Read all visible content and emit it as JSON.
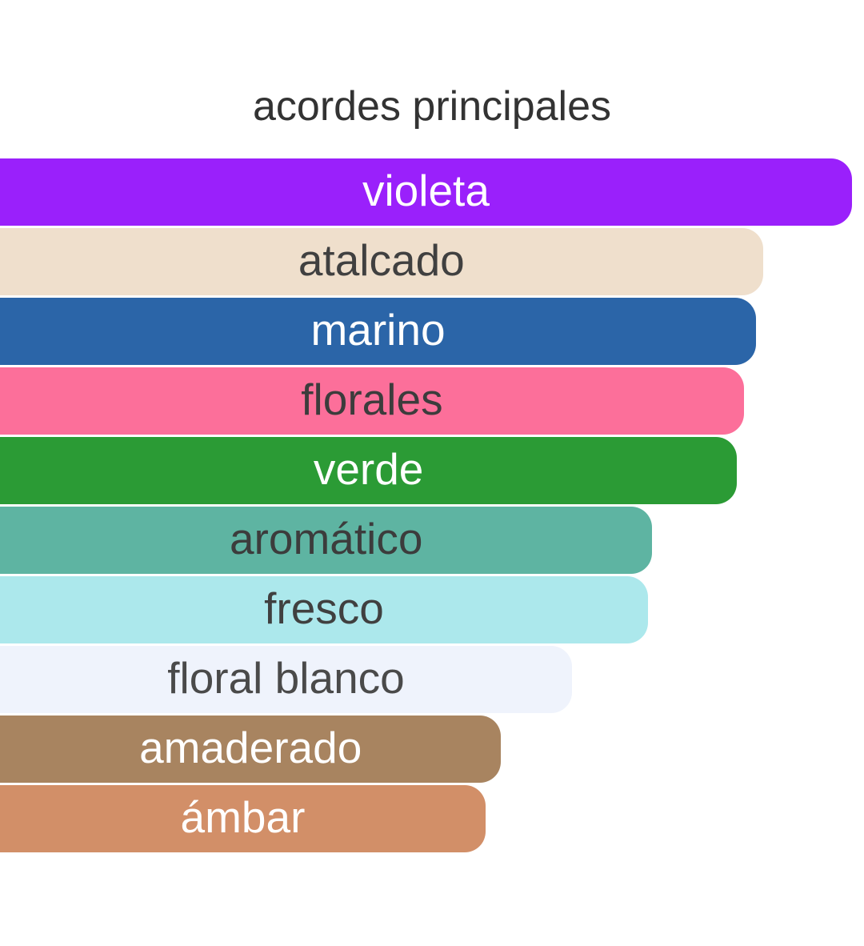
{
  "title": "acordes principales",
  "chart_data": {
    "type": "bar",
    "orientation": "horizontal",
    "title": "acordes principales",
    "xlabel": "",
    "ylabel": "",
    "axes_visible": false,
    "gridlines": false,
    "legend": "none",
    "value_scale": "relative strength, % of strongest accord",
    "xlim": [
      0,
      100
    ],
    "categories": [
      "violeta",
      "atalcado",
      "marino",
      "florales",
      "verde",
      "aromático",
      "fresco",
      "floral blanco",
      "amaderado",
      "ámbar"
    ],
    "values": [
      100,
      89.6,
      88.7,
      87.3,
      86.5,
      76.5,
      76.1,
      67.1,
      58.8,
      57.0
    ],
    "title_color": "#333333",
    "bars": [
      {
        "label": "violeta",
        "color": "#9a20fb",
        "text_color": "#ffffff",
        "width_pct": 98.6
      },
      {
        "label": "atalcado",
        "color": "#efdfcc",
        "text_color": "#404040",
        "width_pct": 88.3
      },
      {
        "label": "marino",
        "color": "#2b65a8",
        "text_color": "#ffffff",
        "width_pct": 87.5
      },
      {
        "label": "florales",
        "color": "#fc6f9a",
        "text_color": "#3c3c3c",
        "width_pct": 86.1
      },
      {
        "label": "verde",
        "color": "#2b9b35",
        "text_color": "#ffffff",
        "width_pct": 85.3
      },
      {
        "label": "aromático",
        "color": "#5eb4a2",
        "text_color": "#3c3c3c",
        "width_pct": 75.5
      },
      {
        "label": "fresco",
        "color": "#ace8ec",
        "text_color": "#404040",
        "width_pct": 75.0
      },
      {
        "label": "floral blanco",
        "color": "#eff3fc",
        "text_color": "#4a4a4a",
        "width_pct": 66.2
      },
      {
        "label": "amaderado",
        "color": "#a88460",
        "text_color": "#ffffff",
        "width_pct": 58.0
      },
      {
        "label": "ámbar",
        "color": "#d28f68",
        "text_color": "#ffffff",
        "width_pct": 56.2
      }
    ]
  }
}
